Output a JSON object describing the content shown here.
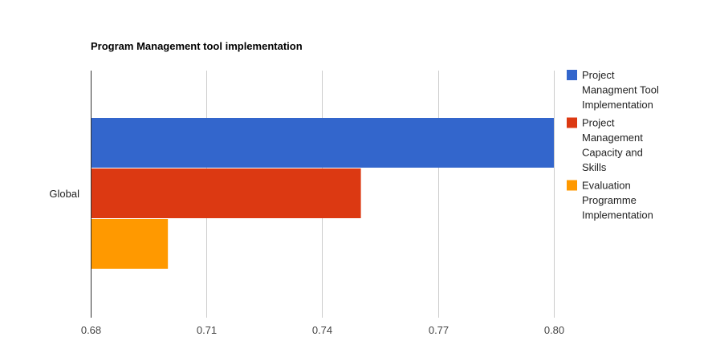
{
  "chart_data": {
    "type": "bar",
    "orientation": "horizontal",
    "title": "Program Management tool implementation",
    "categories": [
      "Global"
    ],
    "series": [
      {
        "name": "Project Managment Tool Implementation",
        "values": [
          0.8
        ],
        "color": "#3366cc",
        "legend_lines": [
          "Project",
          "Managment Tool",
          "Implementation"
        ]
      },
      {
        "name": "Project Management Capacity and Skills",
        "values": [
          0.75
        ],
        "color": "#dc3912",
        "legend_lines": [
          "Project",
          "Management",
          "Capacity and",
          "Skills"
        ]
      },
      {
        "name": "Evaluation Programme Implementation",
        "values": [
          0.7
        ],
        "color": "#ff9900",
        "legend_lines": [
          "Evaluation",
          "Programme",
          "Implementation"
        ]
      }
    ],
    "xlim": [
      0.68,
      0.8
    ],
    "xticks": [
      "0.68",
      "0.71",
      "0.74",
      "0.77",
      "0.80"
    ],
    "grid": true,
    "legend_position": "right"
  }
}
